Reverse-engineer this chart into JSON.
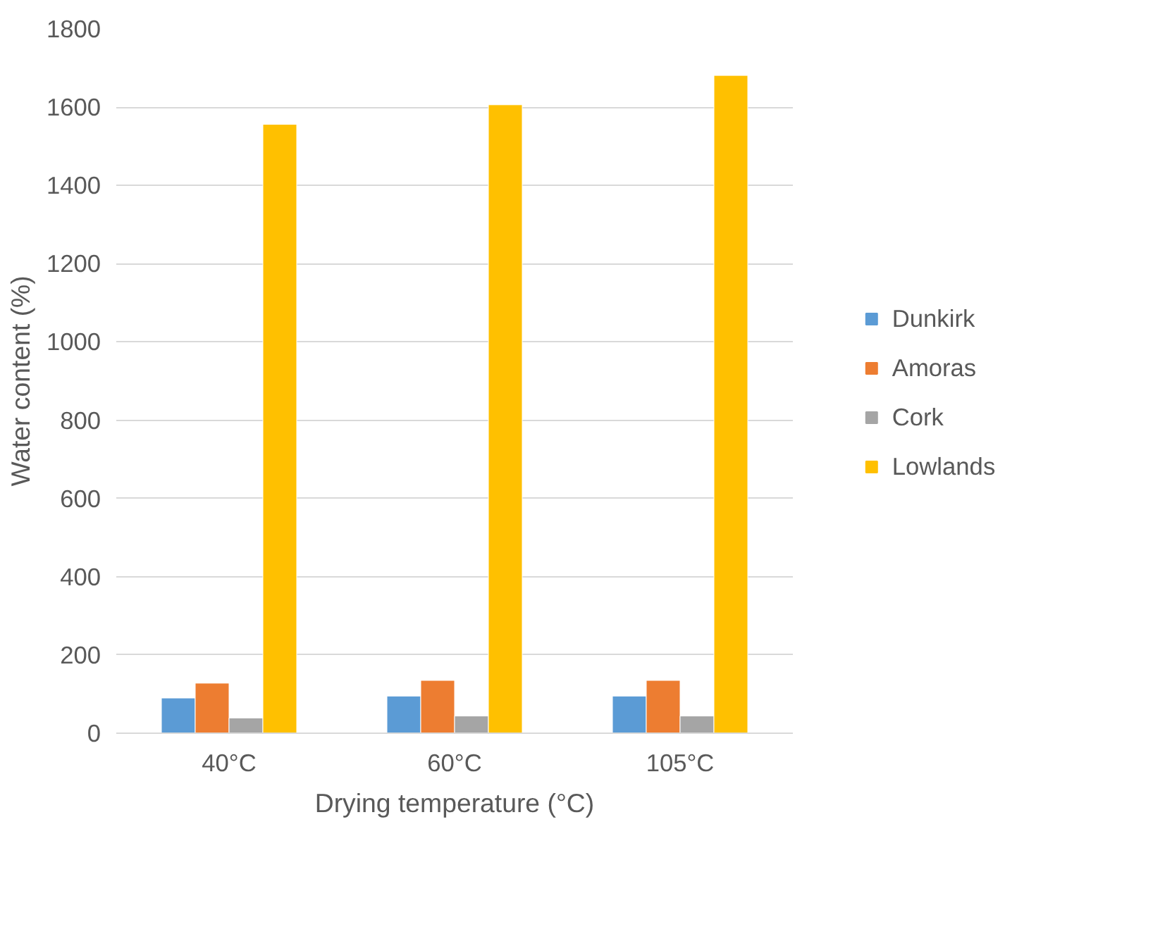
{
  "chart_data": {
    "type": "bar",
    "xlabel": "Drying temperature (°C)",
    "ylabel": "Water content (%)",
    "categories": [
      "40°C",
      "60°C",
      "105°C"
    ],
    "series": [
      {
        "name": "Dunkirk",
        "color": "#5b9bd5",
        "values": [
          90,
          95,
          95
        ]
      },
      {
        "name": "Amoras",
        "color": "#ed7d31",
        "values": [
          128,
          135,
          135
        ]
      },
      {
        "name": "Cork",
        "color": "#a5a5a5",
        "values": [
          39,
          44,
          44
        ]
      },
      {
        "name": "Lowlands",
        "color": "#ffc000",
        "values": [
          1556,
          1606,
          1681
        ]
      }
    ],
    "ylim": [
      0,
      1800
    ],
    "yticks": [
      0,
      200,
      400,
      600,
      800,
      1000,
      1200,
      1400,
      1600,
      1800
    ],
    "grid": "y",
    "legend": "right"
  }
}
